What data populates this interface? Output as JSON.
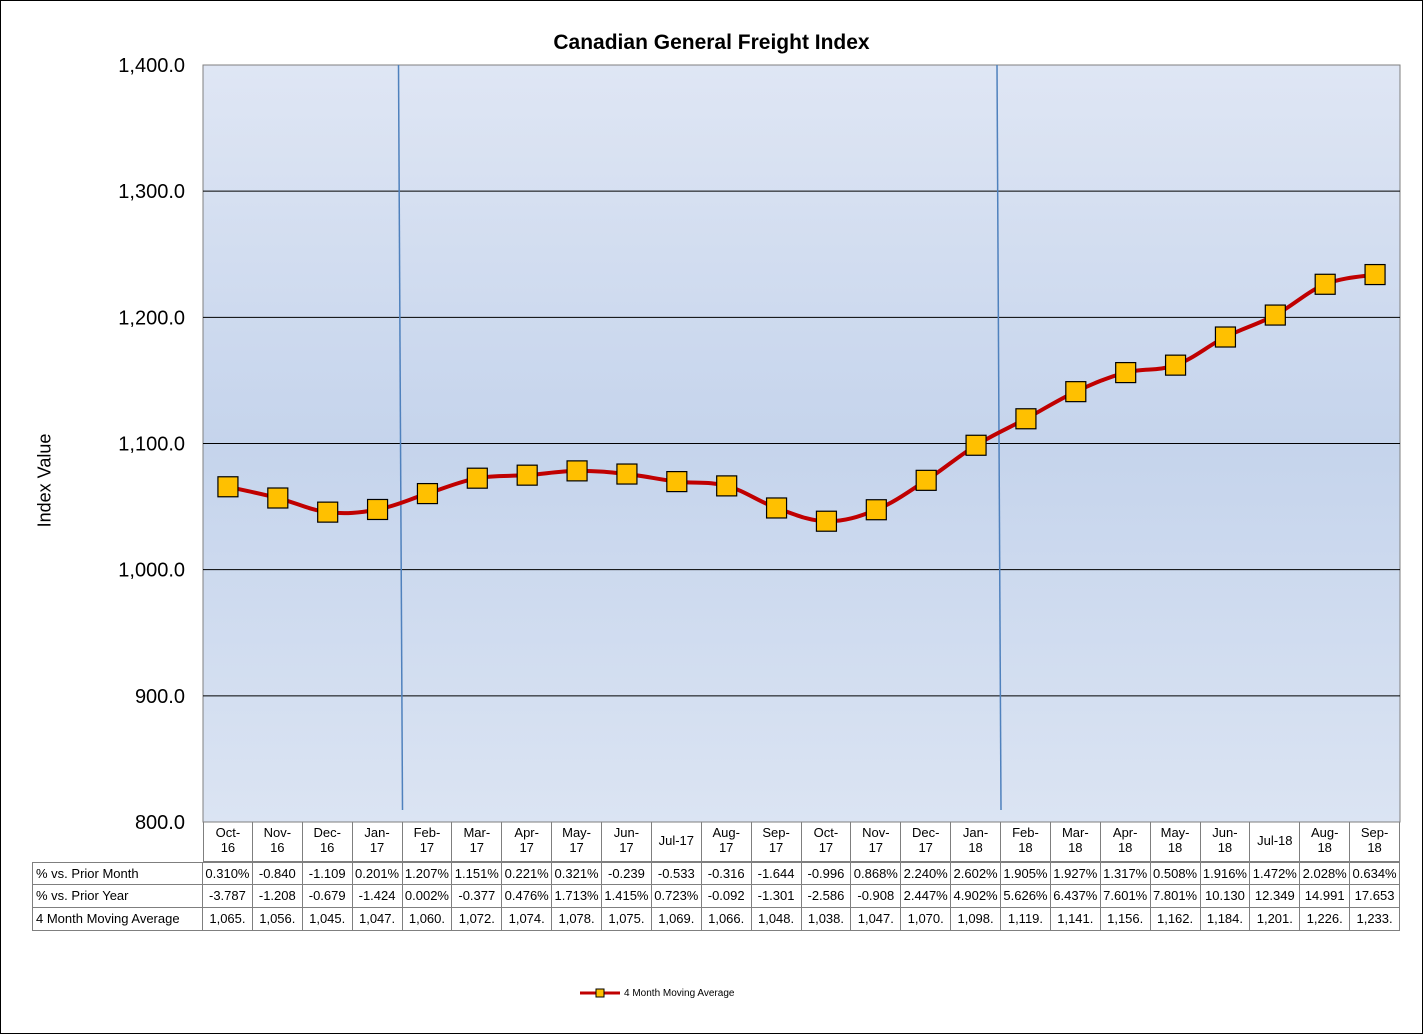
{
  "chart_data": {
    "type": "line",
    "title": "Canadian General Freight Index",
    "ylabel": "Index Value",
    "xlabel": "",
    "ylim": [
      800,
      1400
    ],
    "yticks": [
      800,
      900,
      1000,
      1100,
      1200,
      1300,
      1400
    ],
    "ytick_labels": [
      "800.0",
      "900.0",
      "1,000.0",
      "1,100.0",
      "1,200.0",
      "1,300.0",
      "1,400.0"
    ],
    "grid": true,
    "legend": "bottom",
    "vertical_markers_after": [
      "Jan-17",
      "Jan-18"
    ],
    "categories": [
      [
        "Oct-",
        "16"
      ],
      [
        "Nov-",
        "16"
      ],
      [
        "Dec-",
        "16"
      ],
      [
        "Jan-",
        "17"
      ],
      [
        "Feb-",
        "17"
      ],
      [
        "Mar-",
        "17"
      ],
      [
        "Apr-",
        "17"
      ],
      [
        "May-",
        "17"
      ],
      [
        "Jun-",
        "17"
      ],
      [
        "Jul-17",
        ""
      ],
      [
        "Aug-",
        "17"
      ],
      [
        "Sep-",
        "17"
      ],
      [
        "Oct-",
        "17"
      ],
      [
        "Nov-",
        "17"
      ],
      [
        "Dec-",
        "17"
      ],
      [
        "Jan-",
        "18"
      ],
      [
        "Feb-",
        "18"
      ],
      [
        "Mar-",
        "18"
      ],
      [
        "Apr-",
        "18"
      ],
      [
        "May-",
        "18"
      ],
      [
        "Jun-",
        "18"
      ],
      [
        "Jul-18",
        ""
      ],
      [
        "Aug-",
        "18"
      ],
      [
        "Sep-",
        "18"
      ]
    ],
    "series": [
      {
        "name": "4 Month Moving Average",
        "color": "#c00000",
        "marker_color": "#ffc000",
        "values": [
          1065.7,
          1056.8,
          1045.6,
          1047.7,
          1060.3,
          1072.5,
          1074.9,
          1078.3,
          1075.8,
          1069.8,
          1066.4,
          1048.9,
          1038.4,
          1047.5,
          1070.8,
          1098.6,
          1119.6,
          1141.1,
          1156.2,
          1162.1,
          1184.4,
          1201.8,
          1226.2,
          1233.9
        ]
      }
    ],
    "table": {
      "rows": [
        {
          "label": "% vs. Prior Month",
          "cells": [
            "0.310%",
            "-0.840",
            "-1.109",
            "0.201%",
            "1.207%",
            "1.151%",
            "0.221%",
            "0.321%",
            "-0.239",
            "-0.533",
            "-0.316",
            "-1.644",
            "-0.996",
            "0.868%",
            "2.240%",
            "2.602%",
            "1.905%",
            "1.927%",
            "1.317%",
            "0.508%",
            "1.916%",
            "1.472%",
            "2.028%",
            "0.634%"
          ]
        },
        {
          "label": "% vs. Prior Year",
          "cells": [
            "-3.787",
            "-1.208",
            "-0.679",
            "-1.424",
            "0.002%",
            "-0.377",
            "0.476%",
            "1.713%",
            "1.415%",
            "0.723%",
            "-0.092",
            "-1.301",
            "-2.586",
            "-0.908",
            "2.447%",
            "4.902%",
            "5.626%",
            "6.437%",
            "7.601%",
            "7.801%",
            "10.130",
            "12.349",
            "14.991",
            "17.653"
          ]
        },
        {
          "label": "4 Month Moving Average",
          "cells": [
            "1,065.",
            "1,056.",
            "1,045.",
            "1,047.",
            "1,060.",
            "1,072.",
            "1,074.",
            "1,078.",
            "1,075.",
            "1,069.",
            "1,066.",
            "1,048.",
            "1,038.",
            "1,047.",
            "1,070.",
            "1,098.",
            "1,119.",
            "1,141.",
            "1,156.",
            "1,162.",
            "1,184.",
            "1,201.",
            "1,226.",
            "1,233."
          ]
        }
      ]
    }
  },
  "colors": {
    "plot_bg_top": "#dfe6f4",
    "plot_bg_mid": "#c5d4ec",
    "plot_bg_bottom": "#dbe4f3",
    "marker_line": "#4f81bd"
  }
}
